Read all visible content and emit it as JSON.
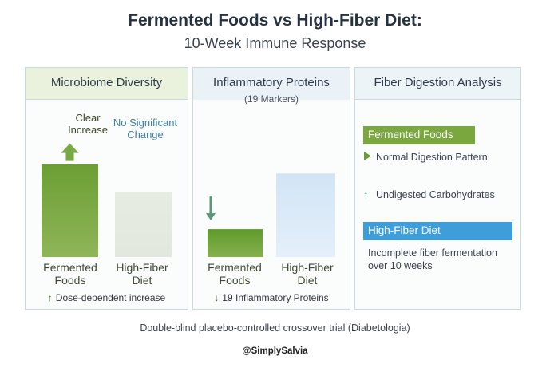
{
  "title": "Fermented Foods vs High-Fiber Diet:",
  "subtitle": "10-Week Immune Response",
  "colors": {
    "fermented": "#7aa83e",
    "fermented_light": "#5f8f2c",
    "fiber_gray": "#e6ebe3",
    "fiber_blue": "#d8e9f6",
    "accent_blue": "#3e9ed9"
  },
  "chart_data": [
    {
      "type": "bar",
      "title": "Microbiome Diversity",
      "categories": [
        "Fermented Foods",
        "High-Fiber Diet"
      ],
      "values": [
        5,
        3.5
      ],
      "ylim": [
        0,
        5.5
      ],
      "annotations": {
        "fermented": "Clear Increase",
        "fiber": "No Significant Change"
      },
      "note": "Dose-dependent increase"
    },
    {
      "type": "bar",
      "title": "Inflammatory Proteins",
      "subtitle": "(19 Markers)",
      "categories": [
        "Fermented Foods",
        "High-Fiber Diet"
      ],
      "values": [
        1.5,
        4.5
      ],
      "ylim": [
        0,
        5.5
      ],
      "note": "19 Inflammatory Proteins"
    }
  ],
  "panel3": {
    "title": "Fiber Digestion Analysis",
    "fermented_tag": "Fermented Foods",
    "row1": "Normal Digestion Pattern",
    "row2": "Undigested Carbohydrates",
    "fiber_tag": "High-Fiber Diet",
    "fiber_note": "Incomplete fiber fermentation over 10 weeks"
  },
  "caption": "Double-blind placebo-controlled crossover trial (Diabetologia)",
  "handle": "@SimplySalvia"
}
